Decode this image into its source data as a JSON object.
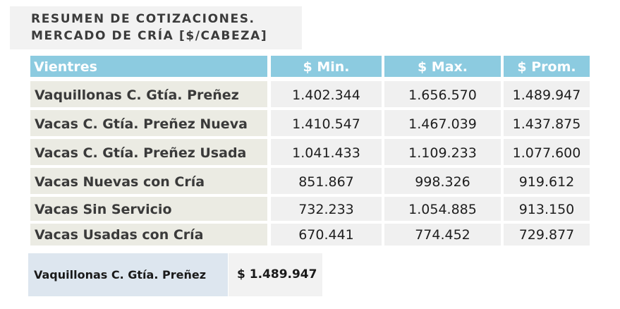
{
  "title": {
    "line1": "RESUMEN DE COTIZACIONES.",
    "line2": "MERCADO DE CRÍA [$/CABEZA]"
  },
  "table": {
    "headers": [
      "Vientres",
      "$ Min.",
      "$ Max.",
      "$ Prom."
    ],
    "rows": [
      {
        "label": "Vaquillonas C. Gtía. Preñez",
        "min": "1.402.344",
        "max": "1.656.570",
        "prom": "1.489.947"
      },
      {
        "label": "Vacas C. Gtía. Preñez Nueva",
        "min": "1.410.547",
        "max": "1.467.039",
        "prom": "1.437.875"
      },
      {
        "label": "Vacas C. Gtía. Preñez Usada",
        "min": "1.041.433",
        "max": "1.109.233",
        "prom": "1.077.600"
      },
      {
        "label": "Vacas Nuevas con Cría",
        "min": "851.867",
        "max": "998.326",
        "prom": "919.612"
      },
      {
        "label": "Vacas Sin Servicio",
        "min": "732.233",
        "max": "1.054.885",
        "prom": "913.150"
      },
      {
        "label": "Vacas Usadas con Cría",
        "min": "670.441",
        "max": "774.452",
        "prom": "729.877"
      }
    ]
  },
  "summary": {
    "label": "Vaquillonas C. Gtía. Preñez",
    "value": "$  1.489.947"
  },
  "colors": {
    "header_bg": "#8ccbe0",
    "label_bg": "#ebebe3",
    "cell_bg": "#f0f0f0",
    "summary_label_bg": "#dde6ef"
  }
}
